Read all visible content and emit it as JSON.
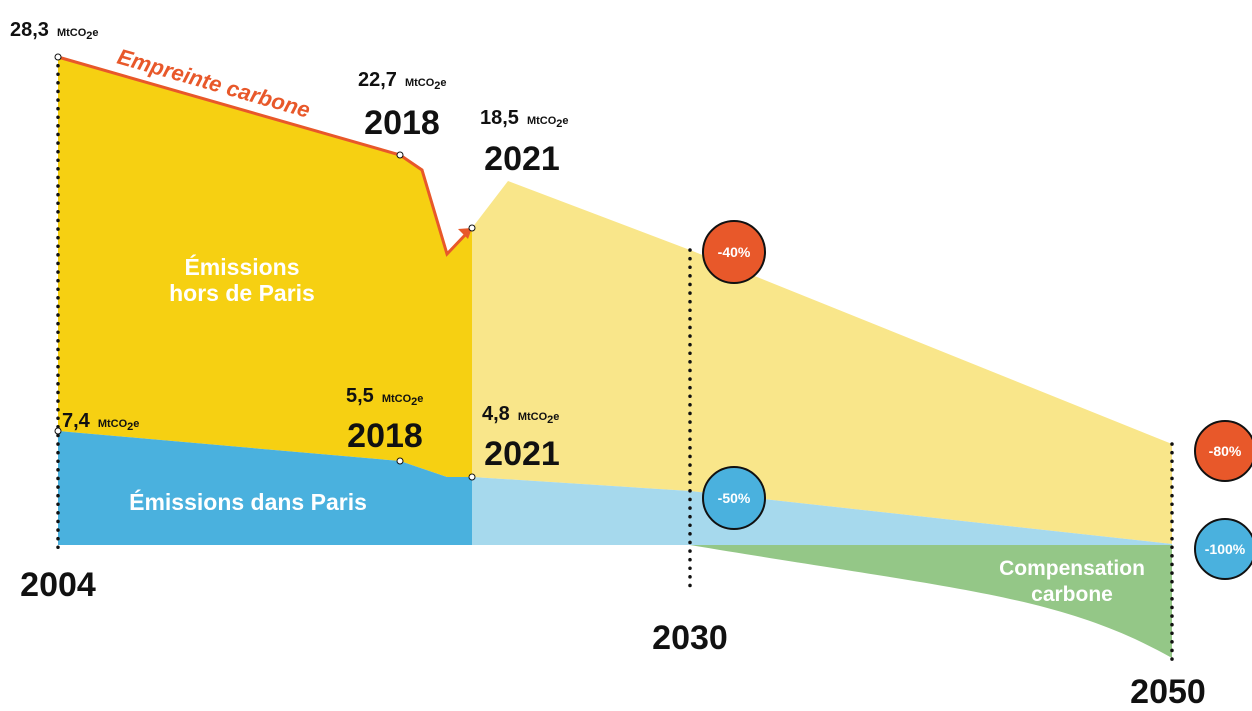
{
  "chart_data": {
    "type": "area",
    "title": "",
    "years": [
      "2004",
      "2018",
      "2021",
      "2030",
      "2050"
    ],
    "series": [
      {
        "name": "Empreinte carbone",
        "unit": "MtCO2e",
        "points": [
          {
            "year": "2004",
            "value": 28.3,
            "label": "28,3"
          },
          {
            "year": "2018",
            "value": 22.7,
            "label": "22,7"
          },
          {
            "year": "2021",
            "value": 18.5,
            "label": "18,5"
          }
        ],
        "color": "#e8582a"
      },
      {
        "name": "Émissions hors de Paris",
        "color": "#f6d012"
      },
      {
        "name": "Émissions dans Paris",
        "unit": "MtCO2e",
        "points": [
          {
            "year": "2004",
            "value": 7.4,
            "label": "7,4"
          },
          {
            "year": "2018",
            "value": 5.5,
            "label": "5,5"
          },
          {
            "year": "2021",
            "value": 4.8,
            "label": "4,8"
          }
        ],
        "color": "#4ab1de"
      },
      {
        "name": "Compensation carbone",
        "color": "#94c787"
      }
    ],
    "targets": [
      {
        "year": "2030",
        "label": "-40%",
        "color": "#e8582a"
      },
      {
        "year": "2030",
        "label": "-50%",
        "color": "#4ab1de"
      },
      {
        "year": "2050",
        "label": "-80%",
        "color": "#e8582a"
      },
      {
        "year": "2050",
        "label": "-100%",
        "color": "#4ab1de"
      }
    ],
    "unit_text": "MtCO",
    "unit_sub": "2",
    "unit_tail": "e"
  },
  "labels": {
    "year_2004": "2004",
    "year_2018_top": "2018",
    "year_2021_top": "2021",
    "year_2018_bottom": "2018",
    "year_2021_bottom": "2021",
    "year_2030": "2030",
    "year_2050": "2050",
    "empreinte": "Empreinte carbone",
    "hors_line1": "Émissions",
    "hors_line2": "hors de Paris",
    "dans": "Émissions dans Paris",
    "comp_line1": "Compensation",
    "comp_line2": "carbone"
  },
  "colors": {
    "yellow": "#f6d012",
    "yellow_light": "#f9e68a",
    "blue": "#4ab1de",
    "blue_light": "#a6d9ed",
    "green": "#94c787",
    "orange": "#e8582a"
  }
}
